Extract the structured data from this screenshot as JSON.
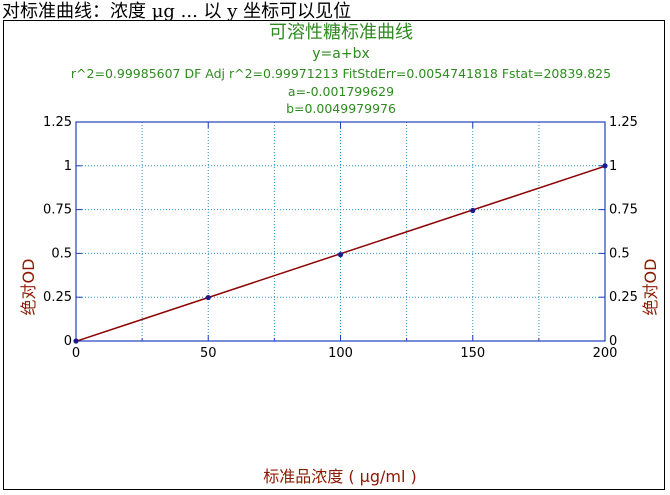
{
  "top_text": "对标准曲线：浓度 μg ... 以 y 坐标可以见位",
  "colors": {
    "header_text": "#2e8b1f",
    "axis": "#1f3fbf",
    "line": "#8b0000",
    "point": "#1a1a8c",
    "grid": "#2f8fbf",
    "axis_label": "#8b1a00"
  },
  "chart_data": {
    "type": "scatter",
    "title": "可溶性糖标准曲线",
    "equation": "y=a+bx",
    "stats": "r^2=0.99985607  DF Adj r^2=0.99971213  FitStdErr=0.0054741818  Fstat=20839.825",
    "coef_a": "a=-0.001799629",
    "coef_b": "b=0.0049979976",
    "xlabel": "标准品浓度 ( μg/ml )",
    "ylabel": "绝对OD",
    "ylabel_right": "绝对OD",
    "xlim": [
      0,
      200
    ],
    "ylim": [
      0,
      1.25
    ],
    "x_ticks": [
      "0",
      "50",
      "100",
      "150",
      "200"
    ],
    "y_ticks": [
      "0",
      "0.25",
      "0.5",
      "0.75",
      "1",
      "1.25"
    ],
    "y_ticks_right": [
      "0",
      "0.25",
      "0.5",
      "0.75",
      "1",
      "1.25"
    ],
    "points": [
      {
        "x": 0,
        "y": 0
      },
      {
        "x": 50,
        "y": 0.248
      },
      {
        "x": 100,
        "y": 0.493
      },
      {
        "x": 150,
        "y": 0.745
      },
      {
        "x": 200,
        "y": 1.0
      }
    ],
    "fit": {
      "intercept": -0.001799629,
      "slope": 0.0049979976
    },
    "grid": true
  }
}
